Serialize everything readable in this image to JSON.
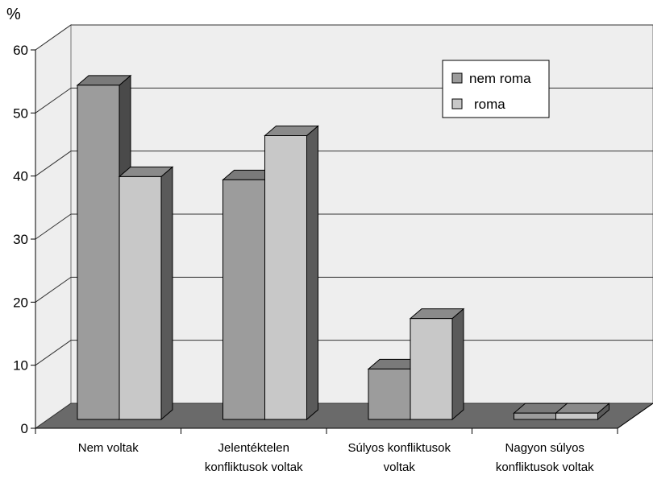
{
  "chart_data": {
    "type": "bar",
    "style": "3d-clustered",
    "y_unit_label": "%",
    "ylim": [
      0,
      60
    ],
    "yticks": [
      0,
      10,
      20,
      30,
      40,
      50,
      60
    ],
    "grid": true,
    "legend_position": "top-right",
    "categories": [
      [
        "Nem voltak"
      ],
      [
        "Jelentéktelen",
        "konfliktusok voltak"
      ],
      [
        "Súlyos konfliktusok",
        "voltak"
      ],
      [
        "Nagyon súlyos",
        "konfliktusok voltak"
      ]
    ],
    "series": [
      {
        "name": "nem roma",
        "values": [
          53,
          38,
          8,
          1
        ]
      },
      {
        "name": "roma",
        "values": [
          38.5,
          45,
          16,
          1
        ]
      }
    ],
    "colors": {
      "nem roma": {
        "front": "#9c9c9c",
        "top": "#7a7a7a",
        "side": "#4a4a4a"
      },
      "roma": {
        "front": "#c8c8c8",
        "top": "#8a8a8a",
        "side": "#5a5a5a"
      },
      "floor": "#6a6a6a",
      "wall": "#eeeeee"
    }
  }
}
